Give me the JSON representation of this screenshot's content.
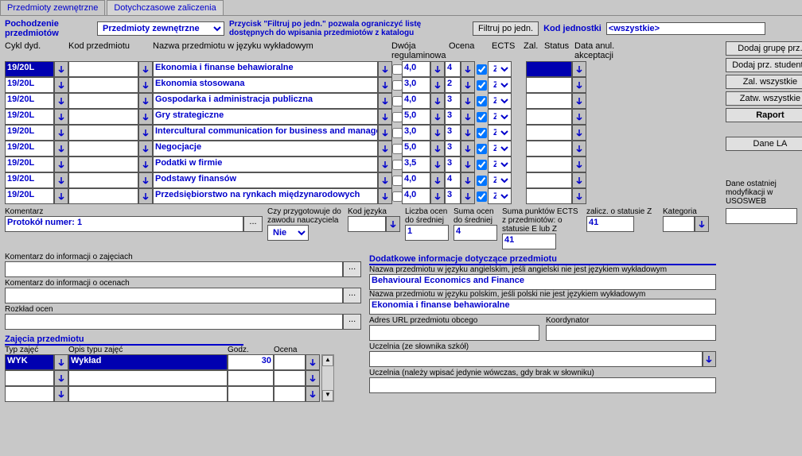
{
  "tabs": {
    "t1": "Przedmioty zewnętrzne",
    "t2": "Dotychczasowe zaliczenia"
  },
  "labels": {
    "origin": "Pochodzenie przedmiotów",
    "note": "Przycisk \"Filtruj po jedn.\" pozwala ograniczyć listę dostępnych do wpisania przedmiotów z katalogu",
    "filter_btn": "Filtruj po jedn.",
    "unit_code": "Kod jednostki",
    "all": "<wszystkie>",
    "origin_select": "Przedmioty zewnętrzne",
    "cykl": "Cykl dyd.",
    "kod": "Kod przedmiotu",
    "nazwa": "Nazwa przedmiotu w języku wykładowym",
    "dwoja": "Dwója regulaminowa",
    "ocena": "Ocena",
    "ects": "ECTS",
    "zal": "Zal.",
    "status": "Status",
    "anul": "Data anul. akceptacji",
    "komentarz": "Komentarz",
    "protokol": "Protokół numer: 1",
    "czy": "Czy przygotowuje do zawodu nauczyciela",
    "nie": "Nie",
    "kod_jez": "Kod języka",
    "liczba": "Liczba ocen do średniej",
    "suma_o": "Suma ocen do średniej",
    "suma_e": "Suma punktów ECTS z przedmiotów: o statusie E lub Z",
    "zalicz": "zalicz. o statusie Z",
    "kategoria": "Kategoria",
    "kom_info": "Komentarz do informacji o zajęciach",
    "kom_ocen": "Komentarz do informacji o ocenach",
    "rozkl": "Rozkład ocen",
    "zaj_prz": "Zajęcia przedmiotu",
    "typ_zaj": "Typ zajęć",
    "opis_typ": "Opis typu zajęć",
    "godz": "Godz.",
    "ocena2": "Ocena",
    "dod_info": "Dodatkowe informacje dotyczące przedmiotu",
    "nazwa_ang": "Nazwa przedmiotu w języku angielskim, jeśli angielski nie jest językiem wykładowym",
    "nazwa_pol": "Nazwa przedmiotu w języku polskim, jeśli polski nie jest językiem wykładowym",
    "adres": "Adres URL przedmiotu obcego",
    "koord": "Koordynator",
    "uczelnia1": "Uczelnia (ze słownika szkół)",
    "uczelnia2": "Uczelnia (należy wpisać jedynie wówczas, gdy brak w słowniku)",
    "dane_ost": "Dane ostatniej modyfikacji w USOSWEB",
    "v_liczba": "1",
    "v_suma_o": "4",
    "v_suma_e": "41",
    "v_zalicz": "41",
    "wyk": "WYK",
    "wyklad": "Wykład",
    "g30": "30",
    "beh_en": "Behavioural Economics and Finance",
    "beh_pl": "Ekonomia i finanse behawioralne"
  },
  "buttons": {
    "b1": "Dodaj grupę prz.",
    "b2": "Dodaj prz. studenta",
    "b3": "Zal. wszystkie",
    "b4": "Zatw. wszystkie",
    "b5": "Raport",
    "b6": "Dane LA"
  },
  "rows": [
    {
      "cykl": "19/20L",
      "nazwa": "Ekonomia i finanse behawioralne",
      "ocena": "4,0",
      "ects": "4",
      "zal": true,
      "status": "Z",
      "sel": true
    },
    {
      "cykl": "19/20L",
      "nazwa": "Ekonomia stosowana",
      "ocena": "3,0",
      "ects": "2",
      "zal": true,
      "status": "Z"
    },
    {
      "cykl": "19/20L",
      "nazwa": "Gospodarka i administracja publiczna",
      "ocena": "4,0",
      "ects": "3",
      "zal": true,
      "status": "Z"
    },
    {
      "cykl": "19/20L",
      "nazwa": "Gry strategiczne",
      "ocena": "5,0",
      "ects": "3",
      "zal": true,
      "status": "Z"
    },
    {
      "cykl": "19/20L",
      "nazwa": "Intercultural communication for business and managem",
      "ocena": "3,0",
      "ects": "3",
      "zal": true,
      "status": "Z"
    },
    {
      "cykl": "19/20L",
      "nazwa": "Negocjacje",
      "ocena": "5,0",
      "ects": "3",
      "zal": true,
      "status": "Z"
    },
    {
      "cykl": "19/20L",
      "nazwa": "Podatki w firmie",
      "ocena": "3,5",
      "ects": "3",
      "zal": true,
      "status": "Z"
    },
    {
      "cykl": "19/20L",
      "nazwa": "Podstawy finansów",
      "ocena": "4,0",
      "ects": "4",
      "zal": true,
      "status": "Z"
    },
    {
      "cykl": "19/20L",
      "nazwa": "Przedsiębiorstwo na rynkach międzynarodowych",
      "ocena": "4,0",
      "ects": "3",
      "zal": true,
      "status": "Z"
    }
  ]
}
